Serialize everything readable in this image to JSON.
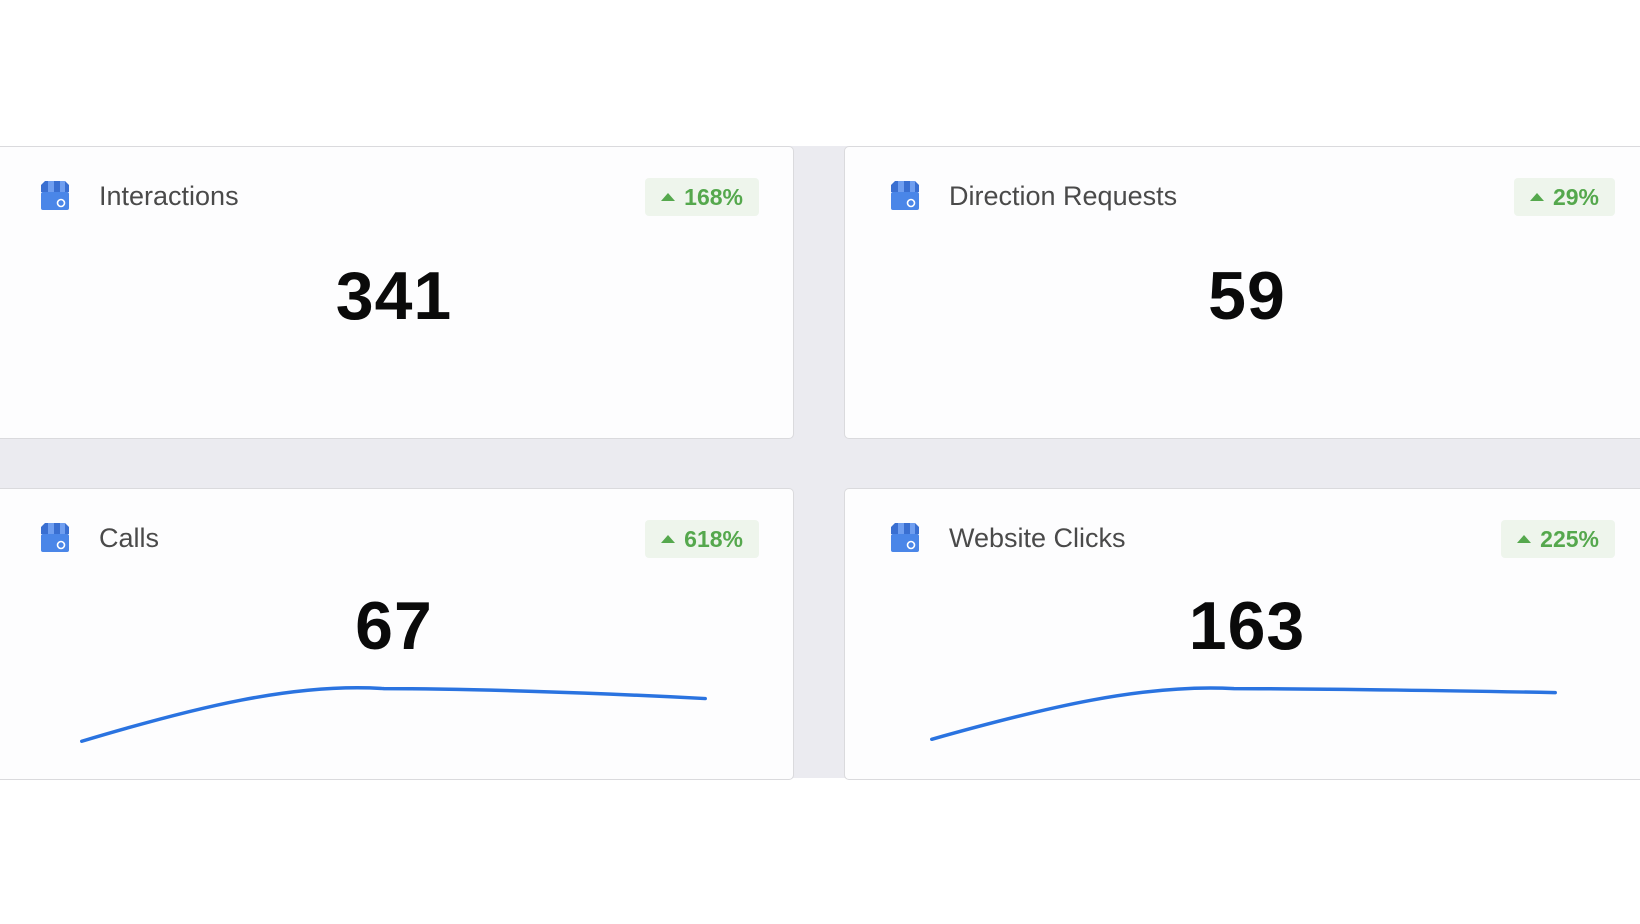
{
  "colors": {
    "page_background": "#ffffff",
    "grid_background": "#ebebf0",
    "card_background": "#fdfdfe",
    "positive_change": "#55a84d",
    "badge_background": "#eef5ec",
    "trend_line": "#2a73e0",
    "icon_blue": "#4a86e8"
  },
  "metrics": [
    {
      "title": "Interactions",
      "value": "341",
      "change": "168%",
      "change_direction": "up",
      "icon": "google-my-business-icon"
    },
    {
      "title": "Direction Requests",
      "value": "59",
      "change": "29%",
      "change_direction": "up",
      "icon": "google-my-business-icon"
    },
    {
      "title": "Calls",
      "value": "67",
      "change": "618%",
      "change_direction": "up",
      "icon": "google-my-business-icon",
      "has_trend": true
    },
    {
      "title": "Website Clicks",
      "value": "163",
      "change": "225%",
      "change_direction": "up",
      "icon": "google-my-business-icon",
      "has_trend": true
    }
  ]
}
